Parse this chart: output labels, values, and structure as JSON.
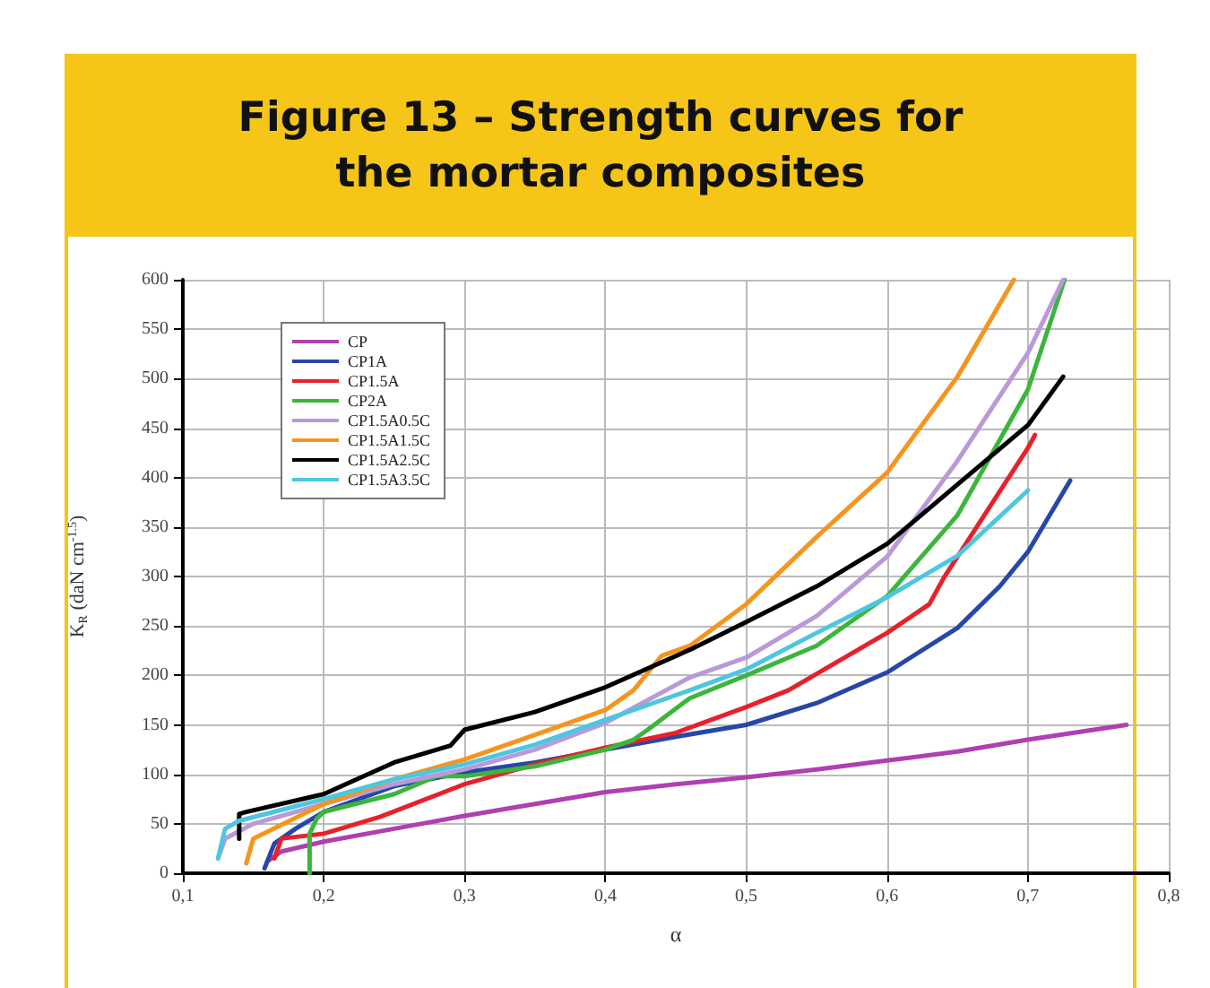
{
  "chart_data": {
    "type": "line",
    "title": "Figure 13 – Strength curves for\nthe mortar composites",
    "xlabel": "α",
    "ylabel": "K$_{R}$ (daN cm$^{-1.5}$)",
    "xlim": [
      0.1,
      0.8
    ],
    "xticks": [
      {
        "value": 0.1,
        "label": "0,1"
      },
      {
        "value": 0.2,
        "label": "0,2"
      },
      {
        "value": 0.3,
        "label": "0,3"
      },
      {
        "value": 0.4,
        "label": "0,4"
      },
      {
        "value": 0.5,
        "label": "0,5"
      },
      {
        "value": 0.6,
        "label": "0,6"
      },
      {
        "value": 0.7,
        "label": "0,7"
      },
      {
        "value": 0.8,
        "label": "0,8"
      }
    ],
    "ylim": [
      0,
      600
    ],
    "yticks": [
      0,
      50,
      100,
      150,
      200,
      250,
      300,
      350,
      400,
      450,
      500,
      550,
      600
    ],
    "grid": true,
    "legend": "top left",
    "marker": "none",
    "line_style": "solid",
    "series": [
      {
        "name": "CP",
        "color": "#b03fb0",
        "x": [
          0.16,
          0.17,
          0.2,
          0.25,
          0.3,
          0.35,
          0.4,
          0.45,
          0.5,
          0.55,
          0.6,
          0.65,
          0.7,
          0.77
        ],
        "values": [
          12,
          22,
          32,
          45,
          58,
          70,
          82,
          90,
          97,
          105,
          114,
          123,
          135,
          150
        ]
      },
      {
        "name": "CP1A",
        "color": "#2747a8",
        "x": [
          0.158,
          0.165,
          0.18,
          0.2,
          0.25,
          0.3,
          0.35,
          0.4,
          0.45,
          0.5,
          0.55,
          0.6,
          0.65,
          0.68,
          0.7,
          0.73
        ],
        "values": [
          5,
          30,
          45,
          62,
          88,
          102,
          112,
          125,
          138,
          150,
          172,
          203,
          248,
          290,
          325,
          397
        ]
      },
      {
        "name": "CP1.5A",
        "color": "#e8202a",
        "x": [
          0.165,
          0.17,
          0.2,
          0.24,
          0.3,
          0.35,
          0.4,
          0.45,
          0.5,
          0.53,
          0.6,
          0.63,
          0.64,
          0.7,
          0.705
        ],
        "values": [
          15,
          35,
          40,
          57,
          90,
          110,
          127,
          142,
          168,
          185,
          243,
          272,
          298,
          430,
          443
        ]
      },
      {
        "name": "CP2A",
        "color": "#3cb53c",
        "x": [
          0.19,
          0.19,
          0.195,
          0.2,
          0.25,
          0.28,
          0.3,
          0.35,
          0.4,
          0.42,
          0.43,
          0.46,
          0.5,
          0.55,
          0.6,
          0.65,
          0.7,
          0.726
        ],
        "values": [
          0,
          40,
          55,
          62,
          80,
          98,
          98,
          108,
          125,
          135,
          145,
          177,
          200,
          230,
          280,
          362,
          489,
          600
        ]
      },
      {
        "name": "CP1.5A0.5C",
        "color": "#b89ad8",
        "x": [
          0.125,
          0.13,
          0.15,
          0.2,
          0.25,
          0.3,
          0.35,
          0.4,
          0.46,
          0.5,
          0.55,
          0.6,
          0.65,
          0.7,
          0.725
        ],
        "values": [
          15,
          35,
          50,
          70,
          90,
          105,
          125,
          152,
          198,
          218,
          260,
          320,
          417,
          526,
          600
        ]
      },
      {
        "name": "CP1.5A1.5C",
        "color": "#f7941d",
        "x": [
          0.145,
          0.15,
          0.2,
          0.25,
          0.3,
          0.35,
          0.4,
          0.42,
          0.44,
          0.46,
          0.5,
          0.55,
          0.6,
          0.65,
          0.69
        ],
        "values": [
          10,
          35,
          70,
          95,
          115,
          140,
          165,
          185,
          220,
          230,
          272,
          340,
          405,
          502,
          600
        ]
      },
      {
        "name": "CP1.5A2.5C",
        "color": "#000000",
        "x": [
          0.14,
          0.14,
          0.145,
          0.2,
          0.25,
          0.29,
          0.3,
          0.35,
          0.4,
          0.46,
          0.5,
          0.55,
          0.6,
          0.65,
          0.7,
          0.725
        ],
        "values": [
          35,
          60,
          62,
          80,
          112,
          129,
          145,
          163,
          188,
          226,
          254,
          290,
          333,
          393,
          453,
          502
        ]
      },
      {
        "name": "CP1.5A3.5C",
        "color": "#4ec6e0",
        "x": [
          0.125,
          0.13,
          0.14,
          0.2,
          0.25,
          0.3,
          0.35,
          0.4,
          0.46,
          0.5,
          0.55,
          0.6,
          0.65,
          0.7
        ],
        "values": [
          15,
          45,
          53,
          75,
          95,
          110,
          130,
          155,
          185,
          206,
          243,
          279,
          321,
          387
        ]
      }
    ]
  }
}
